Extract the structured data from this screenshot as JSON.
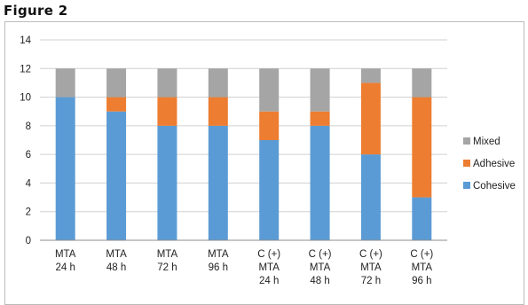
{
  "figure_label": "Figure  2",
  "chart_data": {
    "type": "bar",
    "stacked": true,
    "title": "",
    "xlabel": "",
    "ylabel": "",
    "ylim": [
      0,
      14
    ],
    "yticks": [
      0,
      2,
      4,
      6,
      8,
      10,
      12,
      14
    ],
    "grid": true,
    "legend_position": "right",
    "categories": [
      [
        "MTA",
        "24 h"
      ],
      [
        "MTA",
        "48 h"
      ],
      [
        "MTA",
        "72 h"
      ],
      [
        "MTA",
        "96 h"
      ],
      [
        "C (+)",
        "MTA",
        "24 h"
      ],
      [
        "C (+)",
        "MTA",
        "48 h"
      ],
      [
        "C (+)",
        "MTA",
        "72 h"
      ],
      [
        "C (+)",
        "MTA",
        "96 h"
      ]
    ],
    "series": [
      {
        "name": "Cohesive",
        "color": "#5b9bd5",
        "values": [
          10,
          9,
          8,
          8,
          7,
          8,
          6,
          3
        ]
      },
      {
        "name": "Adhesive",
        "color": "#ed7d31",
        "values": [
          0,
          1,
          2,
          2,
          2,
          1,
          5,
          7
        ]
      },
      {
        "name": "Mixed",
        "color": "#a5a5a5",
        "values": [
          2,
          2,
          2,
          2,
          3,
          3,
          1,
          2
        ]
      }
    ],
    "legend_order": [
      "Mixed",
      "Adhesive",
      "Cohesive"
    ]
  }
}
